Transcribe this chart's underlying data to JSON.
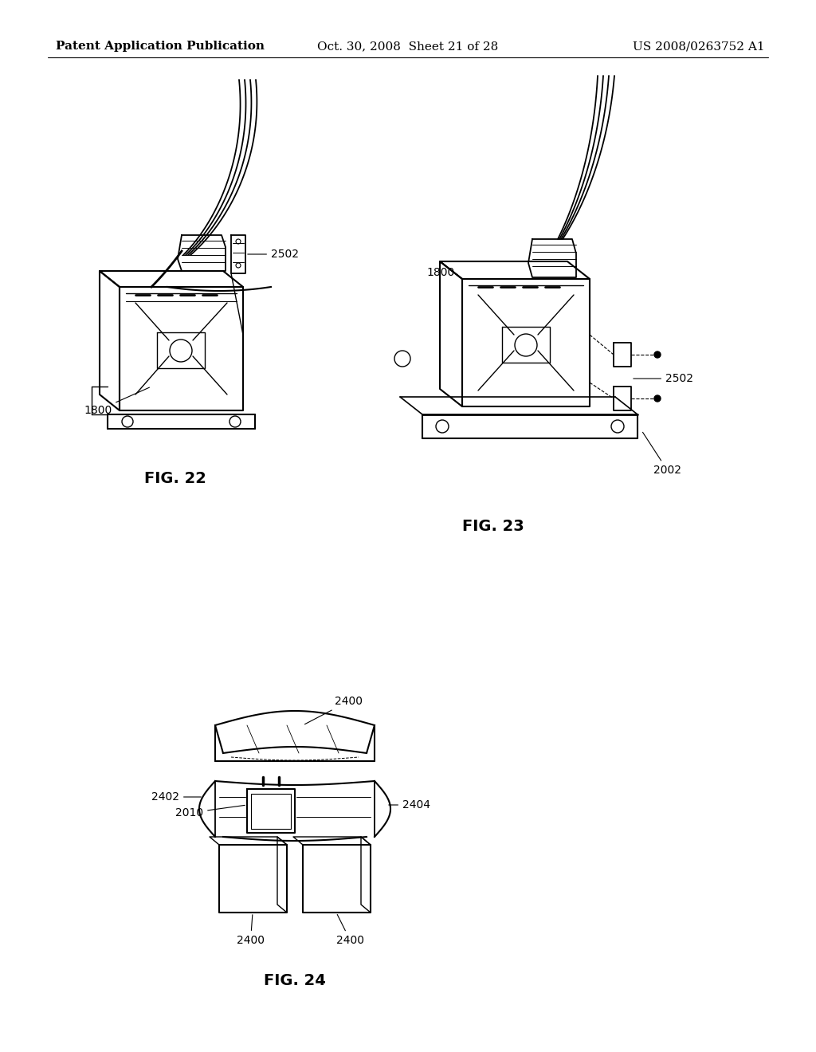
{
  "background_color": "#ffffff",
  "header_left": "Patent Application Publication",
  "header_center": "Oct. 30, 2008  Sheet 21 of 28",
  "header_right": "US 2008/0263752 A1",
  "fig22_label": "FIG. 22",
  "fig23_label": "FIG. 23",
  "fig24_label": "FIG. 24",
  "label_2502_22": "2502",
  "label_1800_22": "1800",
  "label_1800_23": "1800",
  "label_2502_23": "2502",
  "label_2002_23": "2002",
  "label_2400_top": "2400",
  "label_2402": "2402",
  "label_2404": "2404",
  "label_2010": "2010",
  "label_2400_bl": "2400",
  "label_2400_br": "2400",
  "lc": "#000000",
  "lw": 1.3,
  "header_fs": 11,
  "label_fs": 10,
  "figlabel_fs": 14
}
